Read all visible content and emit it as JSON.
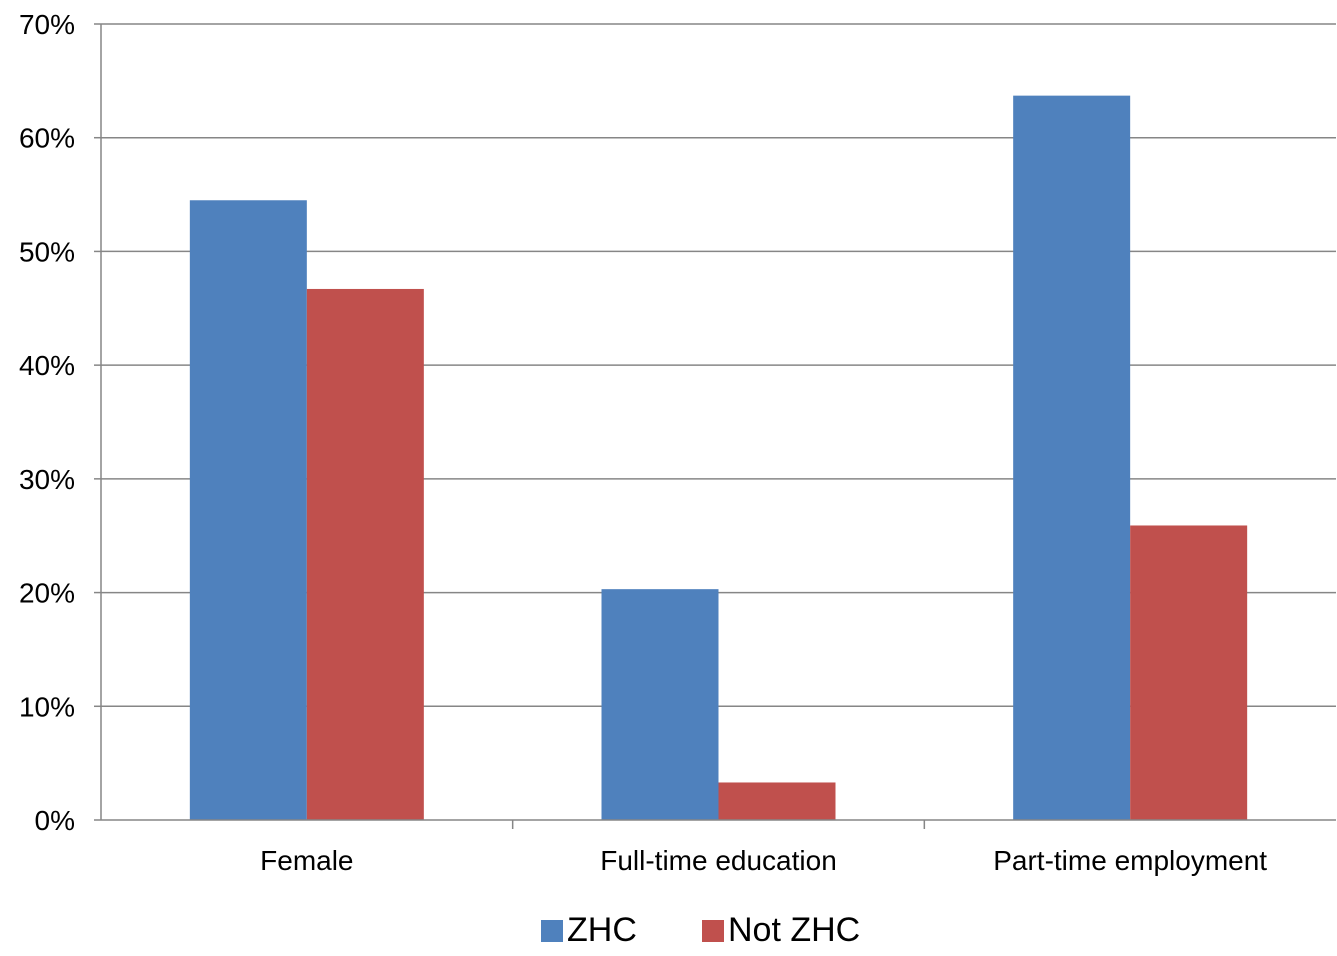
{
  "chart_data": {
    "type": "bar",
    "categories": [
      "Female",
      "Full-time education",
      "Part-time employment"
    ],
    "series": [
      {
        "name": "ZHC",
        "values": [
          54.5,
          20.3,
          63.7
        ],
        "color": "#4F81BD"
      },
      {
        "name": "Not ZHC",
        "values": [
          46.7,
          3.3,
          25.9
        ],
        "color": "#C0504D"
      }
    ],
    "title": "",
    "xlabel": "",
    "ylabel": "",
    "ylim": [
      0,
      70
    ],
    "yticks": [
      0,
      10,
      20,
      30,
      40,
      50,
      60,
      70
    ],
    "ytick_labels": [
      "0%",
      "10%",
      "20%",
      "30%",
      "40%",
      "50%",
      "60%",
      "70%"
    ],
    "grid": true,
    "legend": "bottom-center"
  }
}
